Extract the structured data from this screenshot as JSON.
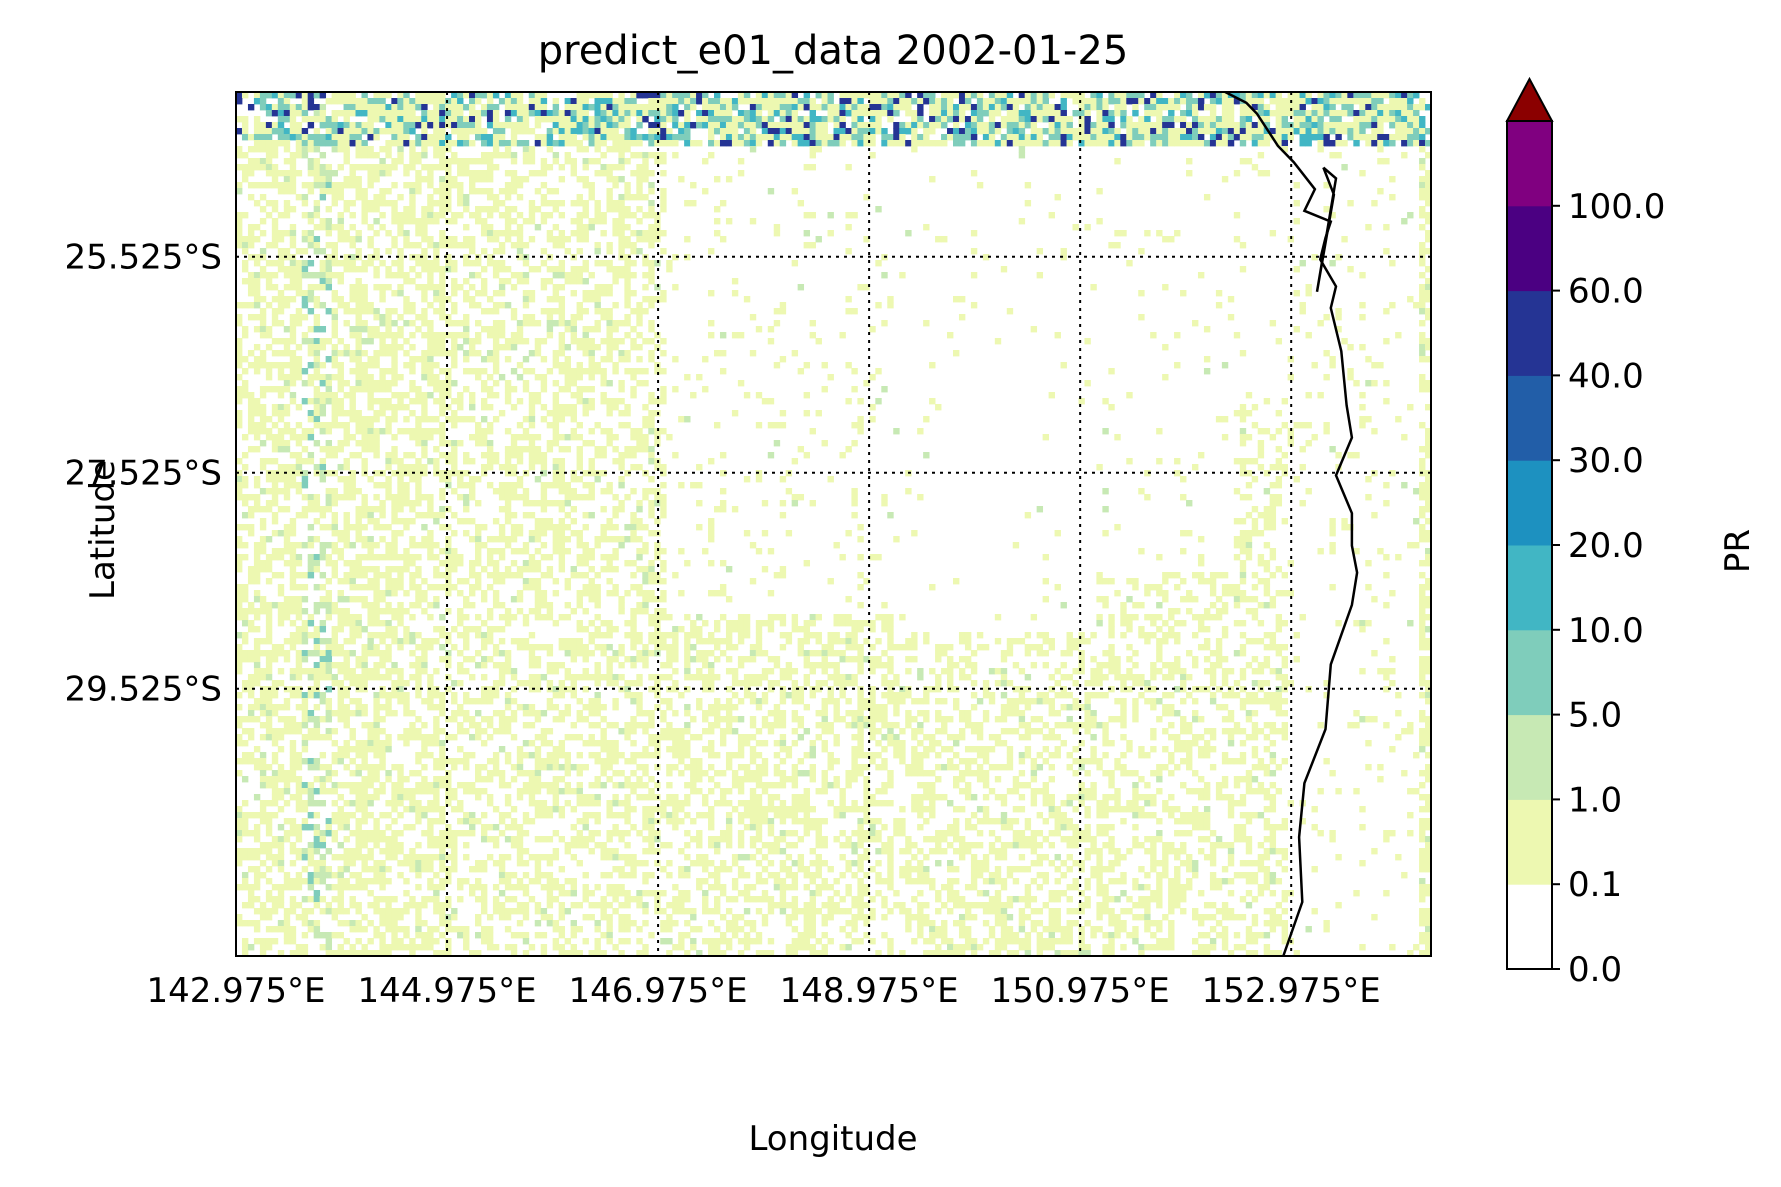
{
  "chart_data": {
    "type": "heatmap",
    "title": "predict_e01_data 2002-01-25",
    "xlabel": "Longitude",
    "ylabel": "Latitude",
    "x_ticks": [
      "142.975°E",
      "144.975°E",
      "146.975°E",
      "148.975°E",
      "150.975°E",
      "152.975°E"
    ],
    "y_ticks": [
      "25.525°S",
      "27.525°S",
      "29.525°S"
    ],
    "x_tick_values": [
      142.975,
      144.975,
      146.975,
      148.975,
      150.975,
      152.975
    ],
    "y_tick_values": [
      -25.525,
      -27.525,
      -29.525
    ],
    "xlim": [
      142.975,
      154.3
    ],
    "ylim": [
      -32.0,
      -24.0
    ],
    "grid": "dotted",
    "colorbar": {
      "label": "PR",
      "extend": "max",
      "levels": [
        0.0,
        0.1,
        1.0,
        5.0,
        10.0,
        20.0,
        30.0,
        40.0,
        60.0,
        100.0
      ],
      "tick_labels": [
        "0.0",
        "0.1",
        "1.0",
        "5.0",
        "10.0",
        "20.0",
        "30.0",
        "40.0",
        "60.0",
        "100.0"
      ],
      "colors": [
        "#ffffff",
        "#edf8b1",
        "#c7e9b4",
        "#7fcdbb",
        "#41b6c4",
        "#1d91c0",
        "#225ea8",
        "#253494",
        "#4b0082",
        "#800080"
      ],
      "over_color": "#8b0000"
    },
    "coastline": [
      [
        152.35,
        -24.0
      ],
      [
        152.55,
        -24.1
      ],
      [
        152.65,
        -24.2
      ],
      [
        152.85,
        -24.5
      ],
      [
        153.0,
        -24.65
      ],
      [
        153.2,
        -24.9
      ],
      [
        153.1,
        -25.1
      ],
      [
        153.35,
        -25.2
      ],
      [
        153.3,
        -25.35
      ],
      [
        153.25,
        -25.55
      ],
      [
        153.4,
        -25.8
      ],
      [
        153.35,
        -26.0
      ],
      [
        153.45,
        -26.4
      ],
      [
        153.5,
        -26.9
      ],
      [
        153.55,
        -27.2
      ],
      [
        153.4,
        -27.55
      ],
      [
        153.55,
        -27.9
      ],
      [
        153.55,
        -28.2
      ],
      [
        153.6,
        -28.45
      ],
      [
        153.55,
        -28.75
      ],
      [
        153.35,
        -29.3
      ],
      [
        153.3,
        -29.9
      ],
      [
        153.1,
        -30.4
      ],
      [
        153.05,
        -30.9
      ],
      [
        153.08,
        -31.5
      ],
      [
        152.9,
        -32.0
      ]
    ],
    "island": [
      [
        153.28,
        -24.7
      ],
      [
        153.4,
        -24.8
      ],
      [
        153.22,
        -25.85
      ],
      [
        153.38,
        -24.95
      ],
      [
        153.28,
        -24.7
      ]
    ]
  }
}
